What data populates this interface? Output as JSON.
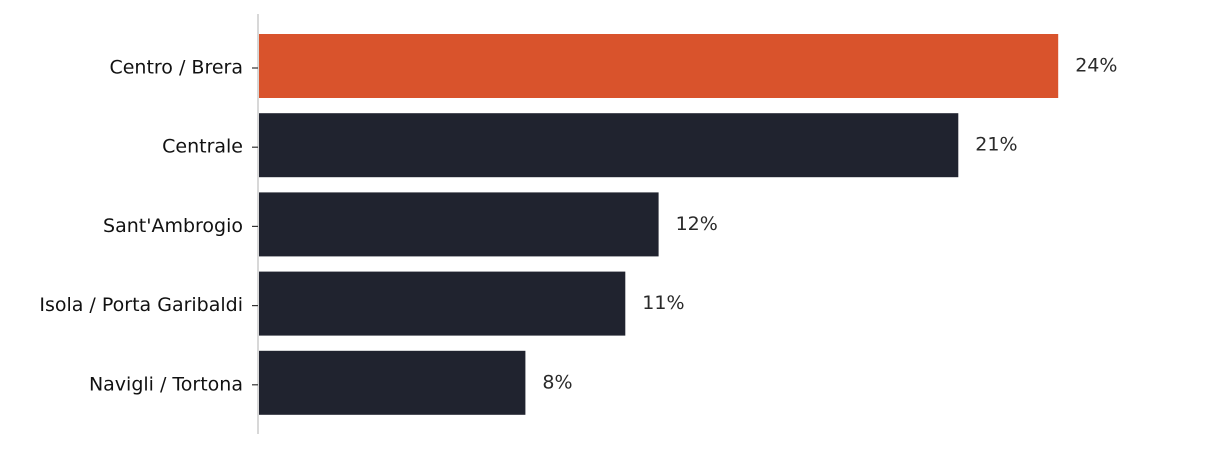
{
  "chart_data": {
    "type": "bar",
    "orientation": "horizontal",
    "categories": [
      "Centro / Brera",
      "Centrale",
      "Sant'Ambrogio",
      "Isola / Porta Garibaldi",
      "Navigli / Tortona"
    ],
    "values": [
      24,
      21,
      12,
      11,
      8
    ],
    "value_labels": [
      "24%",
      "21%",
      "12%",
      "11%",
      "8%"
    ],
    "unit": "%",
    "xlim": [
      0,
      28
    ],
    "grid": false,
    "legend": "none",
    "highlight_index": 0
  },
  "colors": {
    "highlight": "#d9532c",
    "bar": "#20232f",
    "axis": "#cccccc",
    "tick": "#333333"
  }
}
